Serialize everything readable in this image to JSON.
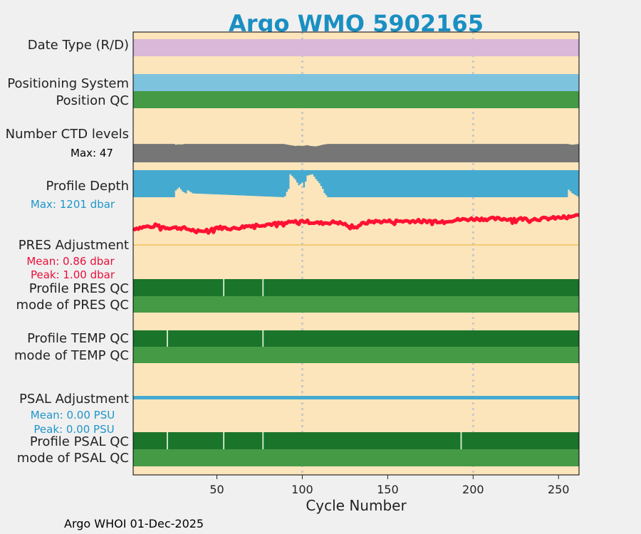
{
  "chart_data": {
    "type": "timeline",
    "title": "Argo WMO 5902165",
    "xlabel": "Cycle Number",
    "xlim": [
      1,
      262
    ],
    "xticks": [
      50,
      100,
      150,
      200,
      250
    ],
    "footer": "Argo WHOI 01-Dec-2025",
    "colors": {
      "background": "#fce5bb",
      "title": "#1a8fc1",
      "date_type": "#d9b8d9",
      "positioning": "#7ec3de",
      "qc_good": "#459a45",
      "qc_flag": "#1a742a",
      "ctd": "#767676",
      "depth": "#45aad0",
      "pres_adj": "#ff1133",
      "pres_line": "#f2c15a",
      "psal": "#45aad0",
      "psal_text": "#1f95c9",
      "pres_text": "#e8103a",
      "gridline": "#c8c8c8"
    },
    "rows": {
      "date_type": "Date Type (R/D)",
      "positioning_system": "Positioning System",
      "position_qc": "Position QC",
      "number_ctd_levels": "Number CTD levels",
      "ctd_max": "Max: 47",
      "profile_depth": "Profile Depth",
      "depth_max": "Max: 1201 dbar",
      "pres_adjustment": "PRES Adjustment",
      "pres_mean": "Mean: 0.86 dbar",
      "pres_peak": "Peak: 1.00 dbar",
      "profile_pres_qc": "Profile PRES QC",
      "mode_pres_qc": "mode of PRES QC",
      "profile_temp_qc": "Profile TEMP QC",
      "mode_temp_qc": "mode of TEMP QC",
      "psal_adjustment": "PSAL Adjustment",
      "psal_mean": "Mean: 0.00 PSU",
      "psal_peak": "Peak: 0.00 PSU",
      "profile_psal_qc": "Profile PSAL QC",
      "mode_psal_qc": "mode of PSAL QC"
    },
    "ctd_levels": {
      "max": 47,
      "anchors": [
        [
          1,
          45
        ],
        [
          25,
          45
        ],
        [
          26,
          43
        ],
        [
          27,
          44
        ],
        [
          30,
          44
        ],
        [
          31,
          45
        ],
        [
          89,
          45
        ],
        [
          93,
          42
        ],
        [
          96,
          40
        ],
        [
          98,
          41
        ],
        [
          100,
          40
        ],
        [
          103,
          42
        ],
        [
          105,
          40
        ],
        [
          108,
          39
        ],
        [
          110,
          41
        ],
        [
          112,
          43
        ],
        [
          115,
          45
        ],
        [
          255,
          45
        ],
        [
          258,
          43
        ],
        [
          262,
          45
        ]
      ]
    },
    "profile_depth": {
      "max": 1201,
      "anchors": [
        [
          1,
          1000
        ],
        [
          25,
          1000
        ],
        [
          26,
          750
        ],
        [
          28,
          640
        ],
        [
          30,
          790
        ],
        [
          32,
          860
        ],
        [
          33,
          740
        ],
        [
          36,
          860
        ],
        [
          89,
          1000
        ],
        [
          90,
          960
        ],
        [
          91,
          800
        ],
        [
          92,
          700
        ],
        [
          93,
          150
        ],
        [
          95,
          280
        ],
        [
          96,
          350
        ],
        [
          98,
          560
        ],
        [
          100,
          460
        ],
        [
          101,
          640
        ],
        [
          103,
          200
        ],
        [
          106,
          150
        ],
        [
          108,
          330
        ],
        [
          110,
          480
        ],
        [
          112,
          690
        ],
        [
          113,
          850
        ],
        [
          115,
          1000
        ],
        [
          255,
          1000
        ],
        [
          256,
          720
        ],
        [
          258,
          850
        ],
        [
          262,
          1000
        ]
      ]
    },
    "pres_adjustment": {
      "mean": 0.86,
      "peak": 1.0,
      "anchors": [
        [
          1,
          0.72
        ],
        [
          15,
          0.78
        ],
        [
          20,
          0.74
        ],
        [
          30,
          0.73
        ],
        [
          40,
          0.66
        ],
        [
          50,
          0.74
        ],
        [
          60,
          0.72
        ],
        [
          70,
          0.78
        ],
        [
          80,
          0.8
        ],
        [
          90,
          0.82
        ],
        [
          100,
          0.86
        ],
        [
          110,
          0.82
        ],
        [
          120,
          0.84
        ],
        [
          130,
          0.76
        ],
        [
          140,
          0.85
        ],
        [
          160,
          0.86
        ],
        [
          180,
          0.86
        ],
        [
          200,
          0.9
        ],
        [
          220,
          0.9
        ],
        [
          240,
          0.9
        ],
        [
          250,
          0.92
        ],
        [
          262,
          0.96
        ]
      ]
    },
    "psal_adjustment": {
      "mean": 0.0,
      "peak": 0.0
    },
    "qc_flags": {
      "pres": [
        54,
        77
      ],
      "temp": [
        21,
        77
      ],
      "psal": [
        21,
        54,
        77,
        193
      ]
    }
  }
}
